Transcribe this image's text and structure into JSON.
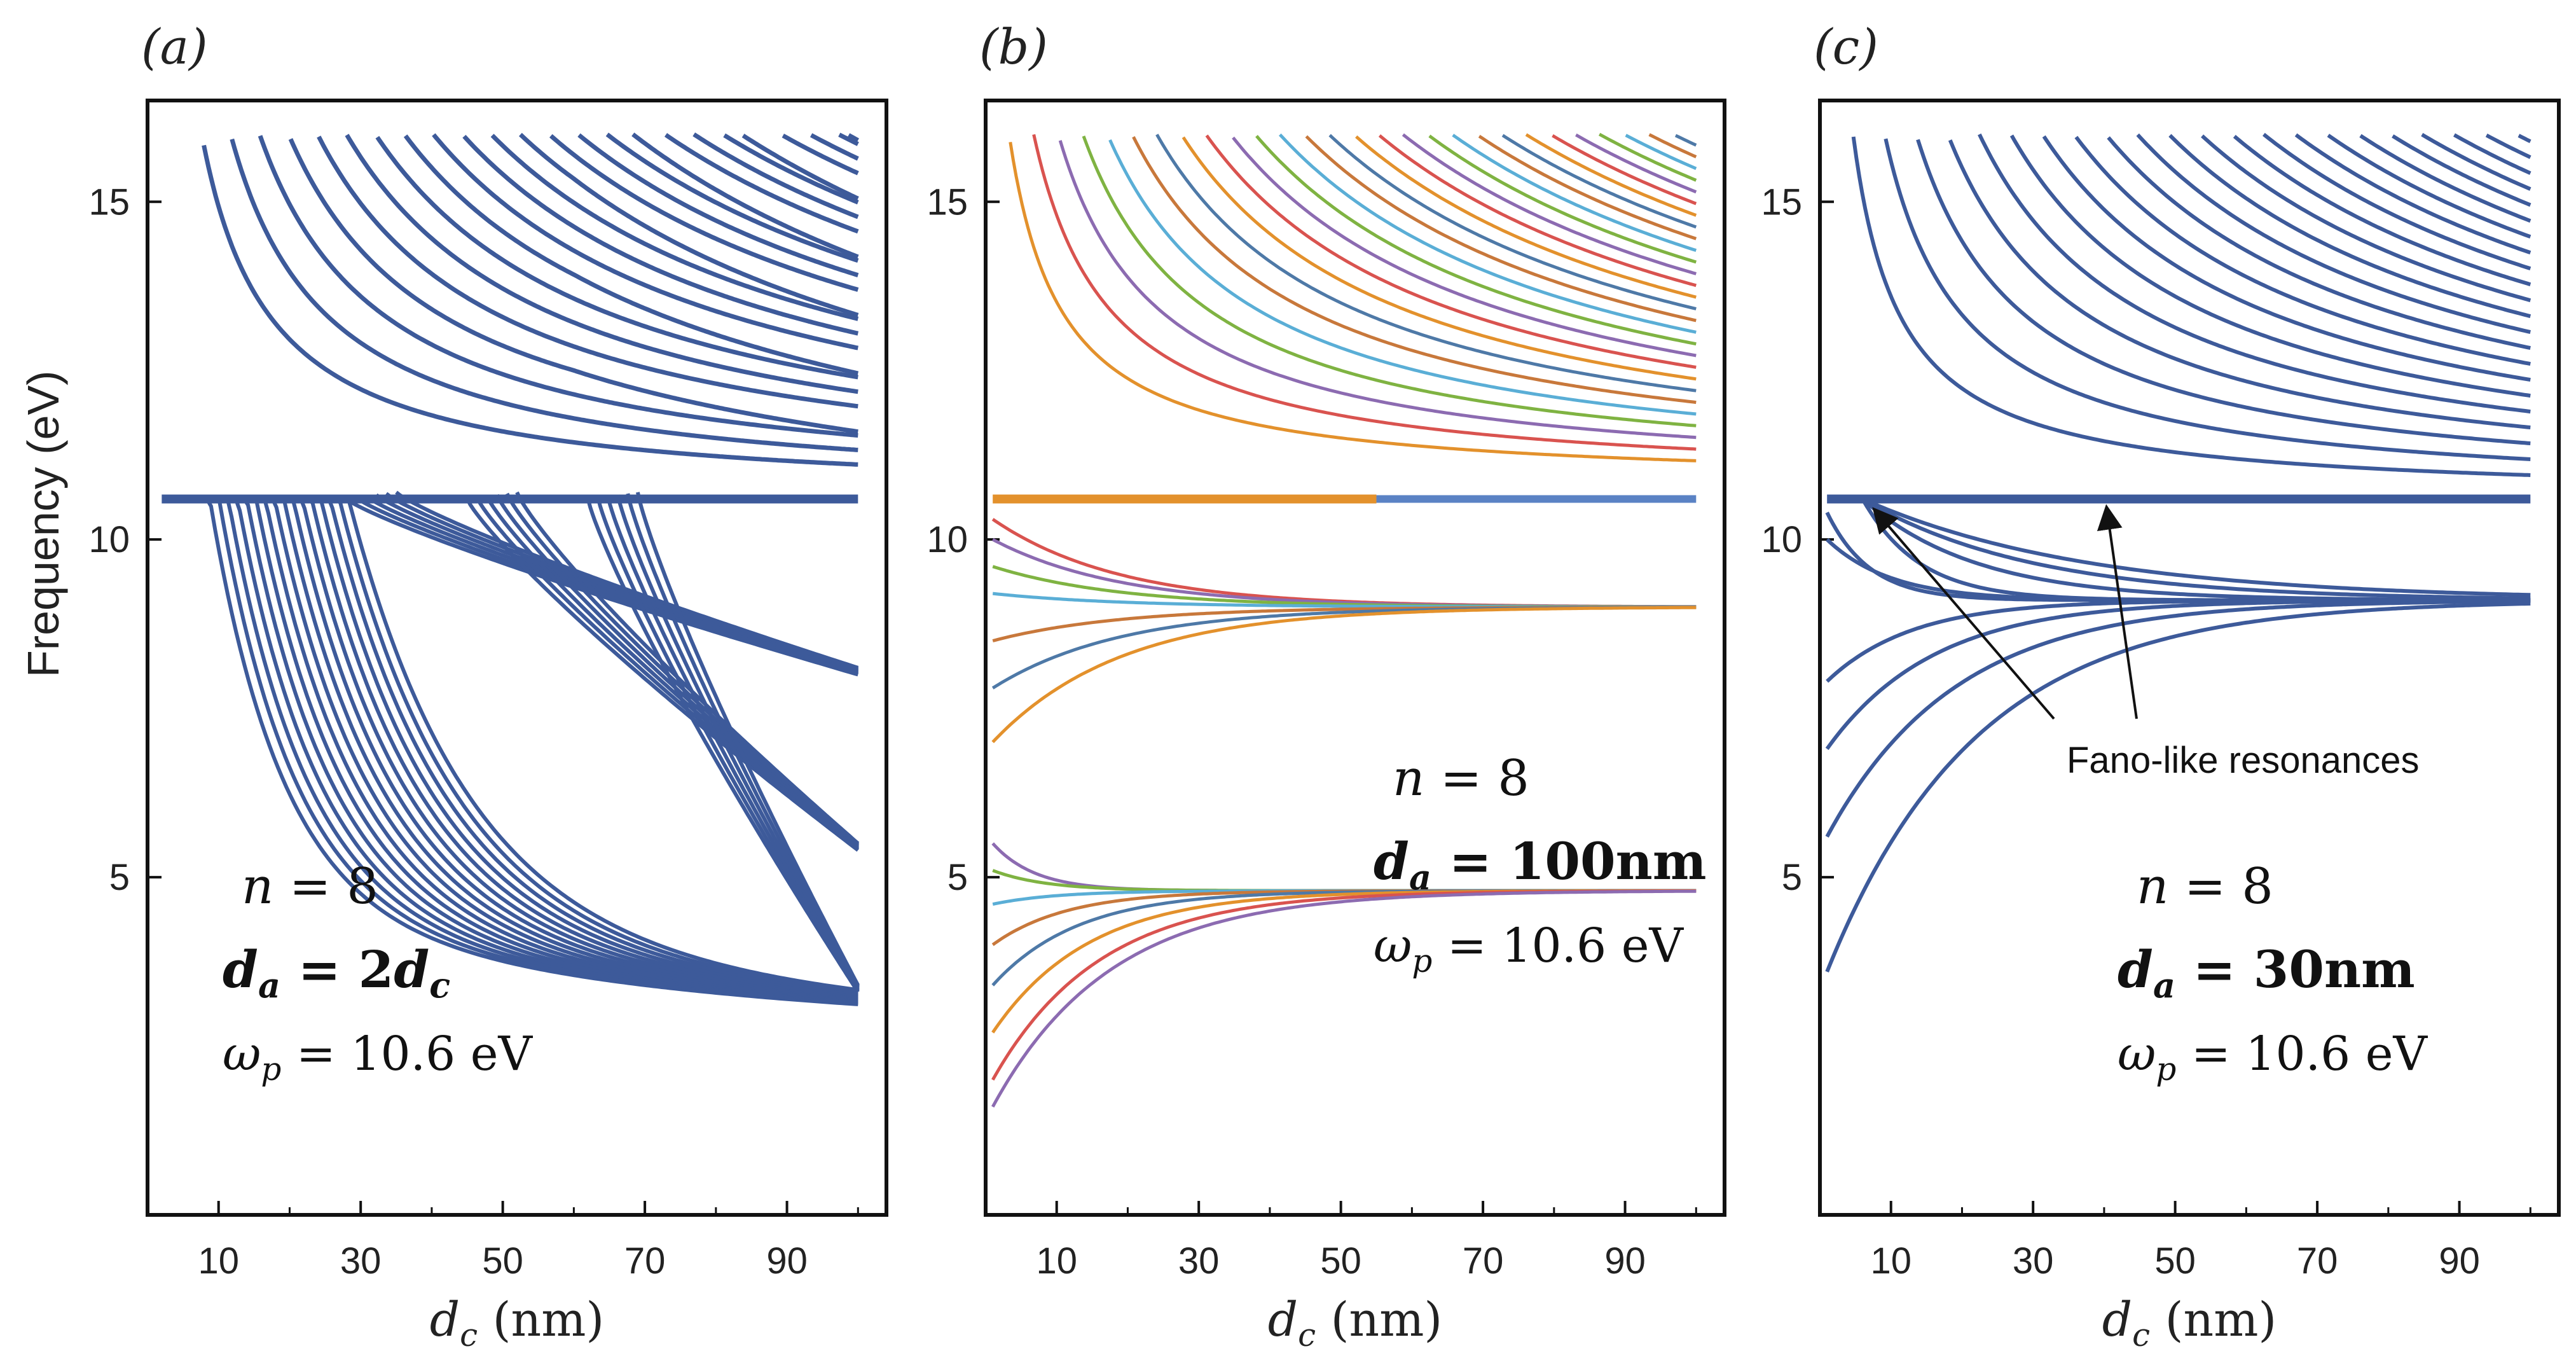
{
  "figure": {
    "description_free": true,
    "omega_p": 10.6
  },
  "chart_data": [
    {
      "id": "a",
      "type": "line",
      "panel_label": "(a)",
      "xlabel_var": "d",
      "xlabel_sub": "c",
      "xlabel_unit": "(nm)",
      "ylabel": "Frequency (eV)",
      "xlim": [
        0,
        104
      ],
      "ylim": [
        0,
        16.5
      ],
      "xticks": [
        "10",
        "30",
        "50",
        "70",
        "90"
      ],
      "xtick_values": [
        10,
        30,
        50,
        70,
        90
      ],
      "yticks": [
        "5",
        "10",
        "15"
      ],
      "ytick_values": [
        5,
        10,
        15
      ],
      "line_color": "#3d5a9a",
      "series_mode": "single-color",
      "plasma_line": 10.6,
      "annotation_n": "n = 8",
      "annotation_n_var": "n",
      "annotation_n_val": "= 8",
      "annotation_da_var": "d",
      "annotation_da_sub": "a",
      "annotation_da_eq": "= 2",
      "annotation_da_rhs_var": "d",
      "annotation_da_rhs_sub": "c",
      "annotation_wp_var": "ω",
      "annotation_wp_sub": "p",
      "annotation_wp_val": "= 10.6 eV",
      "upper_branch_count": 52,
      "lower_branch_count": 16
    },
    {
      "id": "b",
      "type": "line",
      "panel_label": "(b)",
      "xlabel_var": "d",
      "xlabel_sub": "c",
      "xlabel_unit": "(nm)",
      "xlim": [
        0,
        104
      ],
      "ylim": [
        0,
        16.5
      ],
      "xticks": [
        "10",
        "30",
        "50",
        "70",
        "90"
      ],
      "xtick_values": [
        10,
        30,
        50,
        70,
        90
      ],
      "yticks": [
        "5",
        "10",
        "15"
      ],
      "ytick_values": [
        5,
        10,
        15
      ],
      "palette": [
        "#4e79a7",
        "#e3912c",
        "#d9534f",
        "#8c6bb1",
        "#7fb342",
        "#5aaed6",
        "#c8783b"
      ],
      "plasma_line": 10.6,
      "annotation_n": "n = 8",
      "annotation_n_var": "n",
      "annotation_n_val": "= 8",
      "annotation_da_var": "d",
      "annotation_da_sub": "a",
      "annotation_da_eq": "= 100nm",
      "annotation_wp_var": "ω",
      "annotation_wp_sub": "p",
      "annotation_wp_val": "= 10.6 eV",
      "asymptote_upper": 9.0,
      "asymptote_lower": 4.8,
      "upper_branch_count": 34
    },
    {
      "id": "c",
      "type": "line",
      "panel_label": "(c)",
      "xlabel_var": "d",
      "xlabel_sub": "c",
      "xlabel_unit": "(nm)",
      "xlim": [
        0,
        104
      ],
      "ylim": [
        0,
        16.5
      ],
      "xticks": [
        "10",
        "30",
        "50",
        "70",
        "90"
      ],
      "xtick_values": [
        10,
        30,
        50,
        70,
        90
      ],
      "yticks": [
        "5",
        "10",
        "15"
      ],
      "ytick_values": [
        5,
        10,
        15
      ],
      "line_color": "#3d5a9a",
      "plasma_line": 10.6,
      "asymptote": 9.1,
      "annotation_fano": "Fano-like resonances",
      "annotation_n": "n = 8",
      "annotation_n_var": "n",
      "annotation_n_val": "= 8",
      "annotation_da_var": "d",
      "annotation_da_sub": "a",
      "annotation_da_eq": "= 30nm",
      "annotation_wp_var": "ω",
      "annotation_wp_sub": "p",
      "annotation_wp_val": "= 10.6 eV",
      "fano_arrow_targets_x": [
        8,
        40
      ],
      "upper_branch_count": 22
    }
  ]
}
